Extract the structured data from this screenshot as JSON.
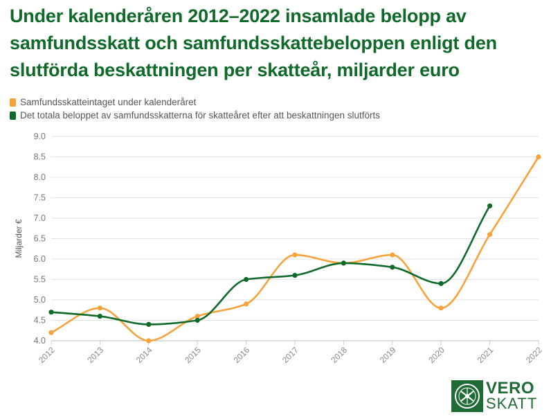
{
  "title": "Under kalenderåren 2012–2022 insamlade belopp av samfundsskatt och samfundsskattebeloppen enligt den slutförda beskattningen per skatteår, miljarder euro",
  "legend": [
    {
      "label": "Samfundsskatteintaget under kalenderåret",
      "color": "#f7a23b"
    },
    {
      "label": "Det totala beloppet av samfundsskatterna för skatteåret efter att beskattningen slutförts",
      "color": "#0f6a2a"
    }
  ],
  "logo": {
    "line1": "VERO",
    "line2": "SKATT"
  },
  "chart_data": {
    "type": "line",
    "title": "Under kalenderåren 2012–2022 insamlade belopp av samfundsskatt och samfundsskattebeloppen enligt den slutförda beskattningen per skatteår, miljarder euro",
    "xlabel": "",
    "ylabel": "Miljarder €",
    "categories": [
      "2012",
      "2013",
      "2014",
      "2015",
      "2016",
      "2017",
      "2018",
      "2019",
      "2020",
      "2021",
      "2022"
    ],
    "ylim": [
      4.0,
      9.0
    ],
    "yticks": [
      "4.0",
      "4.5",
      "5.0",
      "5.5",
      "6.0",
      "6.5",
      "7.0",
      "7.5",
      "8.0",
      "8.5",
      "9.0"
    ],
    "grid": true,
    "series": [
      {
        "name": "Samfundsskatteintaget under kalenderåret",
        "color": "#f7a23b",
        "values": [
          4.2,
          4.8,
          4.0,
          4.6,
          4.9,
          6.1,
          5.9,
          6.1,
          4.8,
          6.6,
          8.5
        ]
      },
      {
        "name": "Det totala beloppet av samfundsskatterna för skatteåret efter att beskattningen slutförts",
        "color": "#0f6a2a",
        "values": [
          4.7,
          4.6,
          4.4,
          4.5,
          5.5,
          5.6,
          5.9,
          5.8,
          5.4,
          7.3,
          null
        ]
      }
    ]
  }
}
